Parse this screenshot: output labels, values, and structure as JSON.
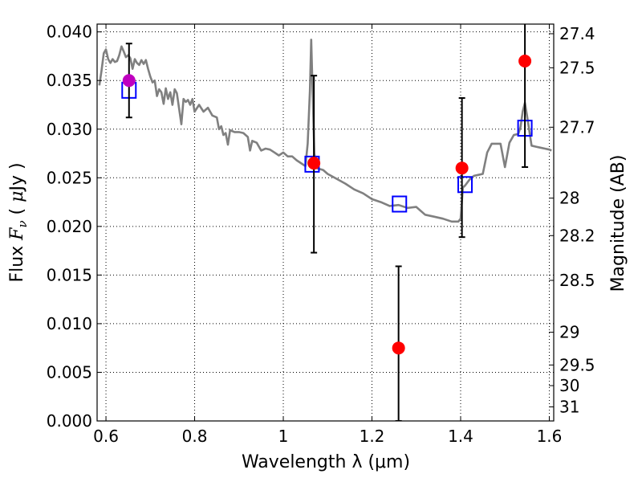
{
  "chart_data": {
    "type": "scatter",
    "xlabel": "Wavelength  λ (μm)",
    "ylabel": "Flux  F_ν  ( μJy )",
    "y2label": "Magnitude (AB)",
    "xlim": [
      0.58,
      1.61
    ],
    "ylim": [
      0.0,
      0.0408
    ],
    "grid": true,
    "x_ticks": [
      0.6,
      0.8,
      1.0,
      1.2,
      1.4,
      1.6
    ],
    "x_tick_labels": [
      "0.6",
      "0.8",
      "1",
      "1.2",
      "1.4",
      "1.6"
    ],
    "y_ticks": [
      0.0,
      0.005,
      0.01,
      0.015,
      0.02,
      0.025,
      0.03,
      0.035,
      0.04
    ],
    "y_tick_labels": [
      "0.000",
      "0.005",
      "0.010",
      "0.015",
      "0.020",
      "0.025",
      "0.030",
      "0.035",
      "0.040"
    ],
    "y2_ticks": [
      "27.4",
      "27.5",
      "27.7",
      "28",
      "28.2",
      "28.5",
      "29",
      "29.5",
      "30",
      "31"
    ],
    "series": [
      {
        "type": "line",
        "color": "#808080",
        "points": [
          [
            0.585,
            0.0345
          ],
          [
            0.59,
            0.036
          ],
          [
            0.595,
            0.0378
          ],
          [
            0.6,
            0.0382
          ],
          [
            0.605,
            0.0372
          ],
          [
            0.61,
            0.0368
          ],
          [
            0.615,
            0.0372
          ],
          [
            0.62,
            0.0369
          ],
          [
            0.625,
            0.037
          ],
          [
            0.63,
            0.0376
          ],
          [
            0.635,
            0.0385
          ],
          [
            0.64,
            0.038
          ],
          [
            0.645,
            0.0374
          ],
          [
            0.65,
            0.0376
          ],
          [
            0.655,
            0.0373
          ],
          [
            0.66,
            0.0362
          ],
          [
            0.665,
            0.0372
          ],
          [
            0.67,
            0.0368
          ],
          [
            0.675,
            0.0366
          ],
          [
            0.68,
            0.0371
          ],
          [
            0.685,
            0.0367
          ],
          [
            0.69,
            0.0371
          ],
          [
            0.695,
            0.0362
          ],
          [
            0.7,
            0.0354
          ],
          [
            0.705,
            0.0348
          ],
          [
            0.71,
            0.035
          ],
          [
            0.715,
            0.0334
          ],
          [
            0.72,
            0.0341
          ],
          [
            0.725,
            0.0338
          ],
          [
            0.73,
            0.0326
          ],
          [
            0.735,
            0.0342
          ],
          [
            0.74,
            0.0331
          ],
          [
            0.745,
            0.0338
          ],
          [
            0.75,
            0.0325
          ],
          [
            0.755,
            0.0341
          ],
          [
            0.76,
            0.0337
          ],
          [
            0.765,
            0.0321
          ],
          [
            0.77,
            0.0305
          ],
          [
            0.775,
            0.0331
          ],
          [
            0.78,
            0.0328
          ],
          [
            0.785,
            0.033
          ],
          [
            0.79,
            0.0325
          ],
          [
            0.795,
            0.0331
          ],
          [
            0.8,
            0.0318
          ],
          [
            0.81,
            0.0325
          ],
          [
            0.82,
            0.0318
          ],
          [
            0.83,
            0.0322
          ],
          [
            0.84,
            0.0314
          ],
          [
            0.85,
            0.0312
          ],
          [
            0.855,
            0.03
          ],
          [
            0.86,
            0.0303
          ],
          [
            0.865,
            0.0294
          ],
          [
            0.87,
            0.0296
          ],
          [
            0.875,
            0.0284
          ],
          [
            0.88,
            0.0299
          ],
          [
            0.89,
            0.0297
          ],
          [
            0.9,
            0.0297
          ],
          [
            0.91,
            0.0296
          ],
          [
            0.92,
            0.0292
          ],
          [
            0.925,
            0.0278
          ],
          [
            0.93,
            0.0288
          ],
          [
            0.94,
            0.0286
          ],
          [
            0.95,
            0.0278
          ],
          [
            0.96,
            0.028
          ],
          [
            0.97,
            0.0279
          ],
          [
            0.98,
            0.0276
          ],
          [
            0.99,
            0.0273
          ],
          [
            1.0,
            0.0276
          ],
          [
            1.01,
            0.0272
          ],
          [
            1.02,
            0.0272
          ],
          [
            1.03,
            0.0268
          ],
          [
            1.04,
            0.0265
          ],
          [
            1.05,
            0.0262
          ],
          [
            1.055,
            0.0285
          ],
          [
            1.06,
            0.034
          ],
          [
            1.063,
            0.0392
          ],
          [
            1.066,
            0.034
          ],
          [
            1.07,
            0.0275
          ],
          [
            1.075,
            0.026
          ],
          [
            1.09,
            0.0258
          ],
          [
            1.1,
            0.0254
          ],
          [
            1.12,
            0.0249
          ],
          [
            1.14,
            0.0244
          ],
          [
            1.16,
            0.0238
          ],
          [
            1.18,
            0.0234
          ],
          [
            1.2,
            0.0228
          ],
          [
            1.22,
            0.0225
          ],
          [
            1.24,
            0.0221
          ],
          [
            1.26,
            0.0222
          ],
          [
            1.28,
            0.0219
          ],
          [
            1.3,
            0.022
          ],
          [
            1.32,
            0.0212
          ],
          [
            1.34,
            0.021
          ],
          [
            1.36,
            0.0208
          ],
          [
            1.38,
            0.0205
          ],
          [
            1.395,
            0.0205
          ],
          [
            1.4,
            0.0208
          ],
          [
            1.405,
            0.024
          ],
          [
            1.41,
            0.0242
          ],
          [
            1.42,
            0.0248
          ],
          [
            1.43,
            0.0252
          ],
          [
            1.44,
            0.0253
          ],
          [
            1.45,
            0.0254
          ],
          [
            1.46,
            0.0276
          ],
          [
            1.47,
            0.0285
          ],
          [
            1.48,
            0.0285
          ],
          [
            1.49,
            0.0285
          ],
          [
            1.5,
            0.0261
          ],
          [
            1.51,
            0.0286
          ],
          [
            1.52,
            0.0294
          ],
          [
            1.53,
            0.0295
          ],
          [
            1.535,
            0.0302
          ],
          [
            1.54,
            0.0318
          ],
          [
            1.545,
            0.0327
          ],
          [
            1.55,
            0.0313
          ],
          [
            1.56,
            0.0283
          ],
          [
            1.57,
            0.0282
          ],
          [
            1.58,
            0.0281
          ],
          [
            1.59,
            0.028
          ],
          [
            1.6,
            0.0279
          ],
          [
            1.605,
            0.0278
          ]
        ]
      },
      {
        "type": "scatter",
        "marker": "open-square",
        "color": "#0000ff",
        "points": [
          [
            0.652,
            0.034
          ],
          [
            1.065,
            0.0264
          ],
          [
            1.262,
            0.0223
          ],
          [
            1.41,
            0.0243
          ],
          [
            1.545,
            0.0301
          ]
        ]
      },
      {
        "type": "scatter",
        "marker": "filled-circle",
        "color": "#ff0000",
        "points": [
          {
            "x": 1.069,
            "y": 0.0265,
            "lo": 0.0173,
            "hi": 0.0355
          },
          {
            "x": 1.26,
            "y": 0.0075,
            "lo": 0.0,
            "hi": 0.0159
          },
          {
            "x": 1.403,
            "y": 0.026,
            "lo": 0.0189,
            "hi": 0.0332
          },
          {
            "x": 1.545,
            "y": 0.037,
            "lo": 0.0261,
            "hi": 0.041
          }
        ]
      },
      {
        "type": "scatter",
        "marker": "filled-circle",
        "color": "#bf00bf",
        "points": [
          {
            "x": 0.652,
            "y": 0.035,
            "lo": 0.0312,
            "hi": 0.0388
          }
        ]
      }
    ]
  }
}
